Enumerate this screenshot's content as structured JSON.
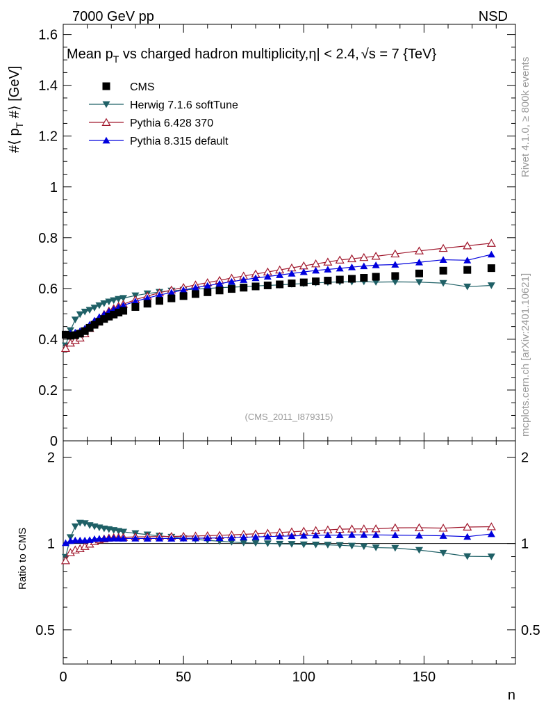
{
  "header": {
    "left_label": "7000 GeV pp",
    "right_label": "NSD"
  },
  "side_notes": {
    "rivet": "Rivet 4.1.0, ≥ 800k events",
    "mcplots": "mcplots.cern.ch [arXiv:2401.10621]"
  },
  "chart_data": {
    "type": "scatter",
    "title": "Mean p_T vs charged hadron multiplicity, |η| < 2.4, √s = 7 {TeV}",
    "title_parts": {
      "lead": "Mean p",
      "sub": "T",
      "middle": " vs charged hadron multiplicity,",
      "eta": "η",
      "eta_cond": "| < 2.4,",
      "sqrt": "√",
      "tail": "s = 7 {TeV}"
    },
    "ylabel": "#⟨ p_T #⟩ [GeV]",
    "ylabel_parts": {
      "a": "#⟨ p",
      "sub": "T",
      "b": " #⟩ [GeV]"
    },
    "xlabel": "n",
    "ratio_ylabel": "Ratio to CMS",
    "analysis_tag": "(CMS_2011_I879315)",
    "xlim": [
      0,
      188
    ],
    "ylim": [
      0,
      1.64
    ],
    "ratio_ylim": [
      0.38,
      2.28
    ],
    "x_ticks": [
      0,
      50,
      100,
      150
    ],
    "y_ticks": [
      0,
      0.2,
      0.4,
      0.6,
      0.8,
      1,
      1.2,
      1.4,
      1.6
    ],
    "ratio_ticks": [
      0.5,
      1,
      2
    ],
    "legend_position": "top-left",
    "colors": {
      "CMS": "#000000",
      "Herwig": "#1f6066",
      "Pythia6": "#a0172c",
      "Pythia8": "#0000dd"
    },
    "series": [
      {
        "name": "CMS",
        "marker": "square",
        "color": "#000000",
        "line": false,
        "x": [
          1,
          3,
          5,
          7,
          9,
          11,
          13,
          15,
          17,
          19,
          21,
          23,
          25,
          30,
          35,
          40,
          45,
          50,
          55,
          60,
          65,
          70,
          75,
          80,
          85,
          90,
          95,
          100,
          105,
          110,
          115,
          120,
          125,
          130,
          138,
          148,
          158,
          168,
          178
        ],
        "values": [
          0.418,
          0.414,
          0.416,
          0.422,
          0.432,
          0.445,
          0.457,
          0.469,
          0.48,
          0.489,
          0.497,
          0.505,
          0.512,
          0.527,
          0.54,
          0.551,
          0.561,
          0.57,
          0.578,
          0.585,
          0.592,
          0.598,
          0.603,
          0.608,
          0.612,
          0.616,
          0.62,
          0.624,
          0.628,
          0.631,
          0.635,
          0.638,
          0.642,
          0.646,
          0.649,
          0.659,
          0.67,
          0.673,
          0.68
        ]
      },
      {
        "name": "Herwig 7.1.6 softTune",
        "marker": "triangle-down",
        "color": "#1f6066",
        "line": true,
        "x": [
          1,
          3,
          5,
          7,
          9,
          11,
          13,
          15,
          17,
          19,
          21,
          23,
          25,
          30,
          35,
          40,
          45,
          50,
          55,
          60,
          65,
          70,
          75,
          80,
          85,
          90,
          95,
          100,
          105,
          110,
          115,
          120,
          125,
          130,
          138,
          148,
          158,
          168,
          178
        ],
        "values": [
          0.375,
          0.435,
          0.477,
          0.498,
          0.508,
          0.515,
          0.524,
          0.533,
          0.541,
          0.548,
          0.553,
          0.558,
          0.562,
          0.572,
          0.58,
          0.586,
          0.591,
          0.594,
          0.597,
          0.6,
          0.603,
          0.605,
          0.607,
          0.61,
          0.612,
          0.614,
          0.617,
          0.619,
          0.622,
          0.624,
          0.626,
          0.626,
          0.627,
          0.625,
          0.626,
          0.625,
          0.621,
          0.607,
          0.612
        ]
      },
      {
        "name": "Pythia 6.428 370",
        "marker": "triangle-up-open",
        "color": "#a0172c",
        "line": true,
        "x": [
          1,
          3,
          5,
          7,
          9,
          11,
          13,
          15,
          17,
          19,
          21,
          23,
          25,
          30,
          35,
          40,
          45,
          50,
          55,
          60,
          65,
          70,
          75,
          80,
          85,
          90,
          95,
          100,
          105,
          110,
          115,
          120,
          125,
          130,
          138,
          148,
          158,
          168,
          178
        ],
        "values": [
          0.364,
          0.385,
          0.395,
          0.405,
          0.422,
          0.443,
          0.464,
          0.483,
          0.498,
          0.511,
          0.521,
          0.53,
          0.538,
          0.556,
          0.57,
          0.583,
          0.594,
          0.604,
          0.614,
          0.623,
          0.632,
          0.641,
          0.649,
          0.657,
          0.665,
          0.673,
          0.681,
          0.689,
          0.697,
          0.704,
          0.712,
          0.717,
          0.722,
          0.727,
          0.736,
          0.748,
          0.758,
          0.768,
          0.778
        ]
      },
      {
        "name": "Pythia 8.315 default",
        "marker": "triangle-up",
        "color": "#0000dd",
        "line": true,
        "x": [
          1,
          3,
          5,
          7,
          9,
          11,
          13,
          15,
          17,
          19,
          21,
          23,
          25,
          30,
          35,
          40,
          45,
          50,
          55,
          60,
          65,
          70,
          75,
          80,
          85,
          90,
          95,
          100,
          105,
          110,
          115,
          120,
          125,
          130,
          138,
          148,
          158,
          168,
          178
        ],
        "values": [
          0.42,
          0.423,
          0.427,
          0.433,
          0.443,
          0.458,
          0.474,
          0.488,
          0.499,
          0.509,
          0.518,
          0.526,
          0.533,
          0.549,
          0.562,
          0.574,
          0.584,
          0.594,
          0.603,
          0.611,
          0.619,
          0.627,
          0.634,
          0.641,
          0.647,
          0.653,
          0.659,
          0.665,
          0.671,
          0.675,
          0.679,
          0.684,
          0.688,
          0.692,
          0.694,
          0.703,
          0.713,
          0.711,
          0.734
        ]
      }
    ]
  }
}
